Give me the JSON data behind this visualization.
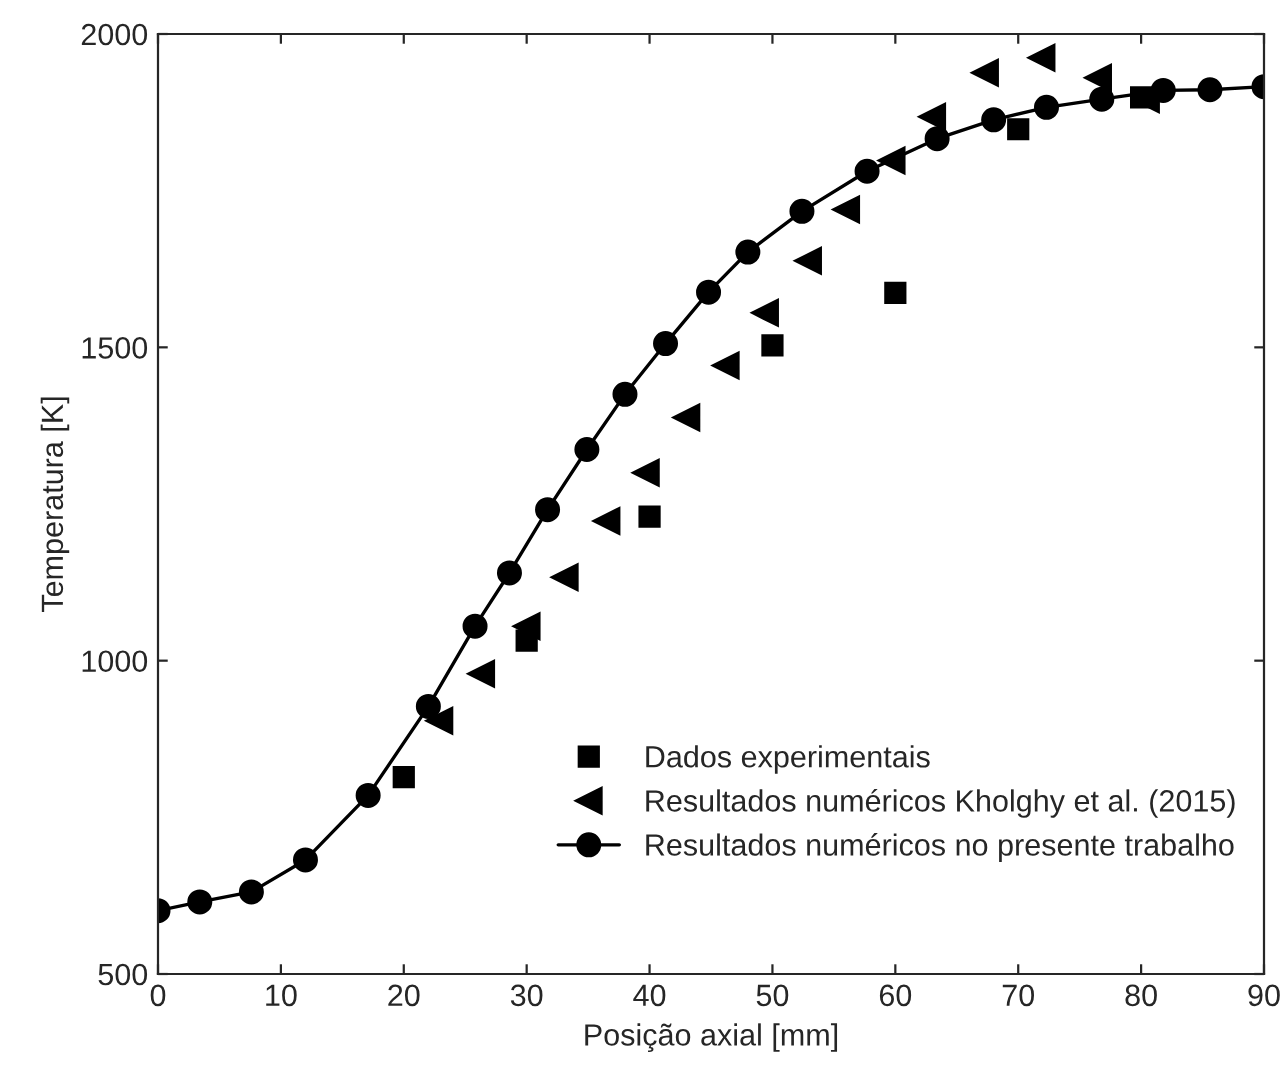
{
  "chart_data": {
    "type": "scatter",
    "xlabel": "Posição axial [mm]",
    "ylabel": "Temperatura [K]",
    "xlim": [
      0,
      90
    ],
    "ylim": [
      500,
      2000
    ],
    "xticks": [
      0,
      10,
      20,
      30,
      40,
      50,
      60,
      70,
      80,
      90
    ],
    "yticks": [
      500,
      1000,
      1500,
      2000
    ],
    "grid": false,
    "legend": "bottom right",
    "series": [
      {
        "name": "Dados experimentais",
        "marker": "square",
        "color": "#000000",
        "x": [
          20,
          30,
          40,
          50,
          60,
          70,
          80
        ],
        "values": [
          814,
          1032,
          1230,
          1503,
          1587,
          1848,
          1899
        ]
      },
      {
        "name": "Resultados numéricos Kholghy et al. (2015)",
        "marker": "triangle",
        "color": "#000000",
        "x": [
          22.9,
          26.3,
          30.0,
          33.1,
          36.5,
          39.7,
          43.0,
          46.2,
          49.4,
          52.9,
          56.0,
          59.7,
          63.0,
          67.3,
          71.9,
          76.5,
          80.4
        ],
        "values": [
          904,
          979,
          1055,
          1133,
          1223,
          1300,
          1388,
          1471,
          1555,
          1638,
          1720,
          1798,
          1868,
          1938,
          1962,
          1930,
          1896
        ]
      },
      {
        "name": "Resultados numéricos no presente trabalho",
        "type": "line",
        "marker": "circle",
        "line_style": "solid",
        "color": "#000000",
        "x": [
          0,
          3.4,
          7.6,
          12.0,
          17.1,
          22.0,
          25.8,
          28.6,
          31.7,
          34.9,
          38.0,
          41.3,
          44.8,
          48.0,
          52.4,
          57.7,
          63.4,
          68.0,
          72.3,
          76.8,
          81.8,
          85.6,
          90
        ],
        "values": [
          601,
          615,
          631,
          682,
          785,
          927,
          1055,
          1140,
          1241,
          1337,
          1425,
          1506,
          1588,
          1652,
          1717,
          1781,
          1833,
          1863,
          1883,
          1896,
          1910,
          1911,
          1916
        ]
      }
    ]
  }
}
